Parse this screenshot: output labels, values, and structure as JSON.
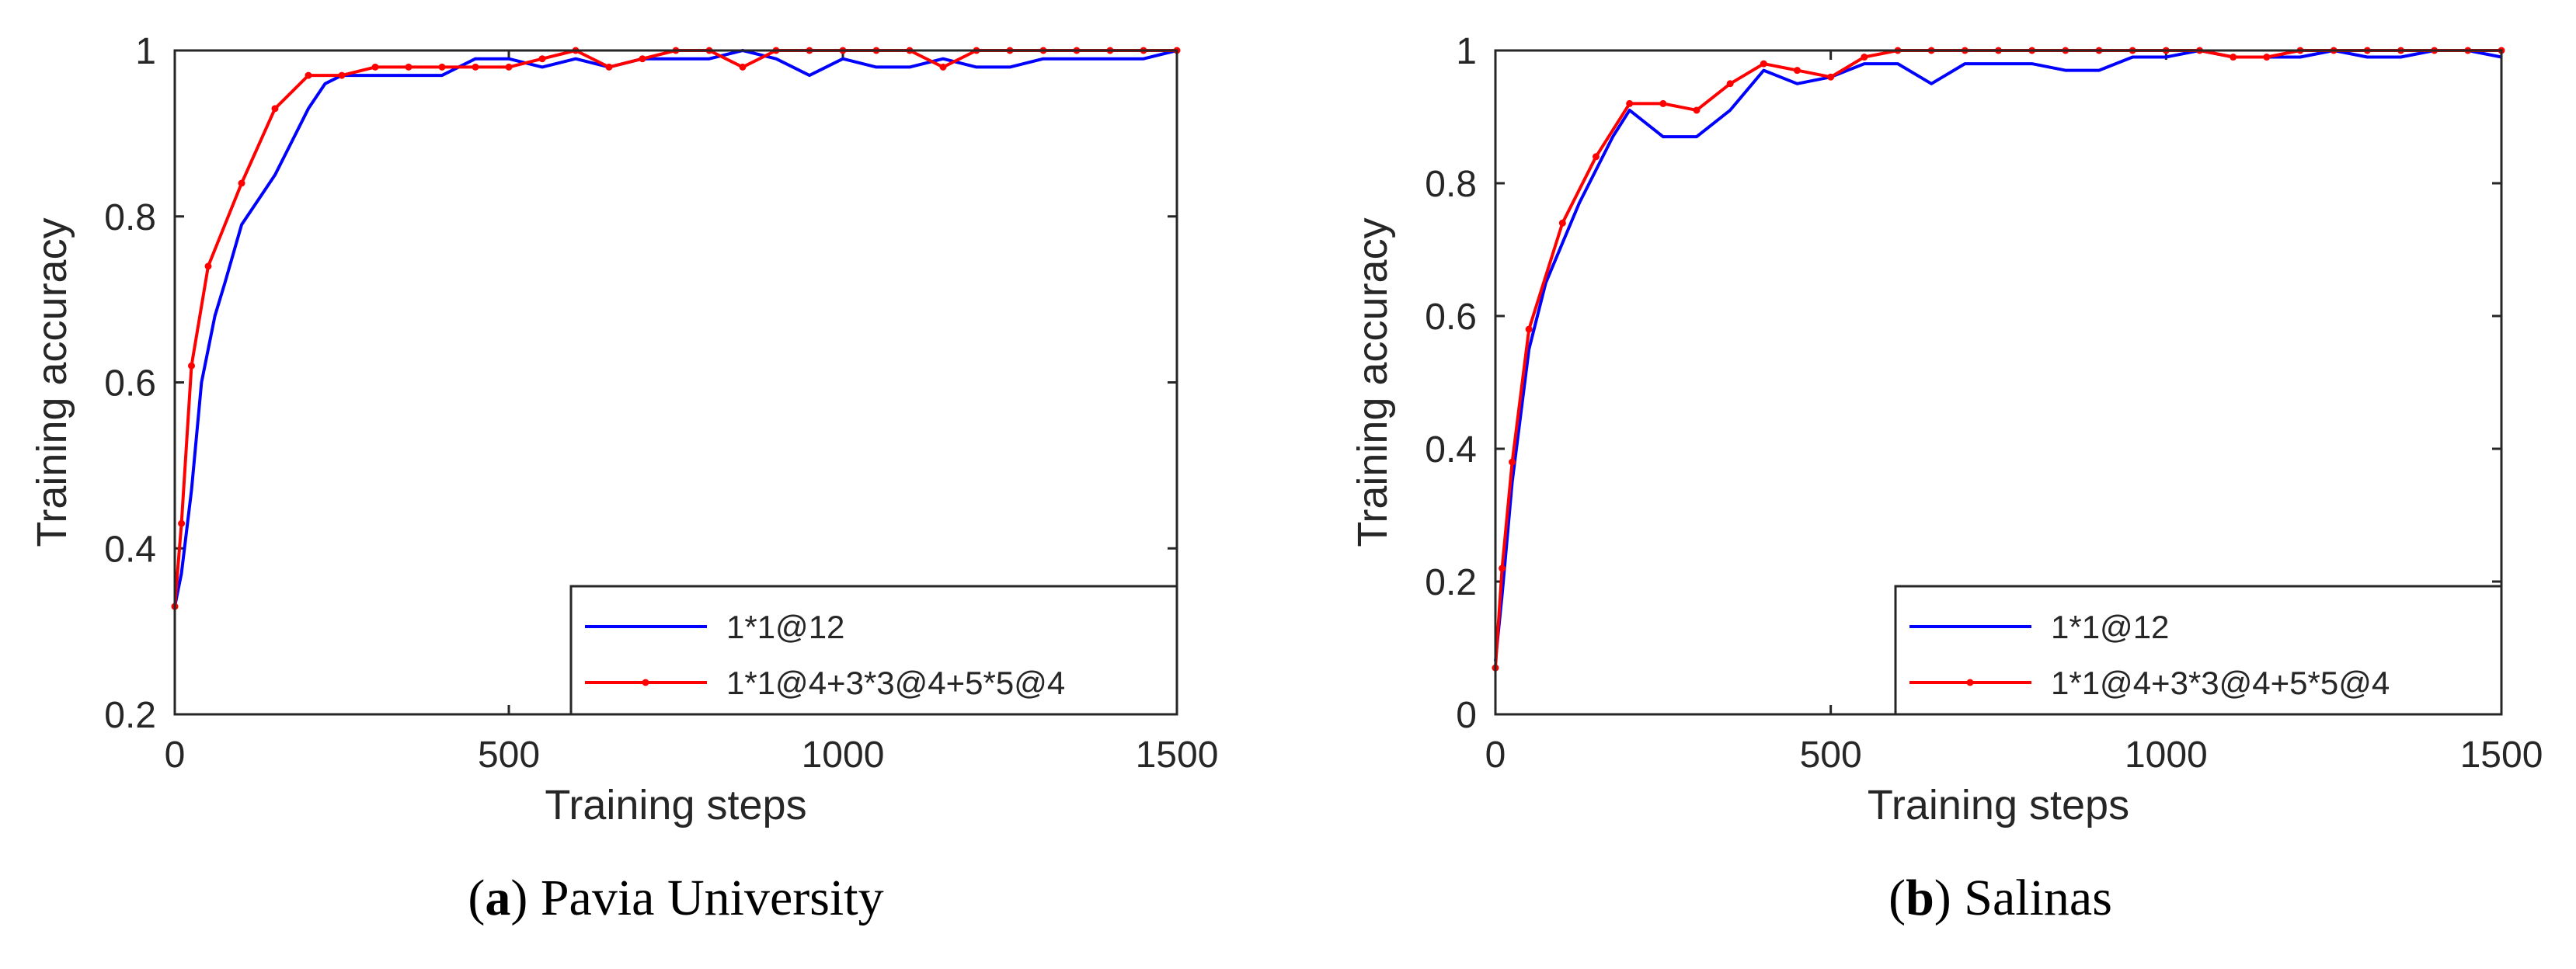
{
  "chart_data": [
    {
      "type": "line",
      "caption_letter": "a",
      "caption_text": ") Pavia University",
      "caption_open": "(",
      "xlabel": "Training steps",
      "ylabel": "Training accuracy",
      "xlim": [
        0,
        1500
      ],
      "ylim": [
        0.2,
        1
      ],
      "xticks": [
        0,
        500,
        1000,
        1500
      ],
      "yticks": [
        0.2,
        0.4,
        0.6,
        0.8,
        1
      ],
      "xtick_labels": [
        "0",
        "500",
        "1000",
        "1500"
      ],
      "ytick_labels": [
        "0.2",
        "0.4",
        "0.6",
        "0.8",
        "1"
      ],
      "legend_position": "bottom-right",
      "series": [
        {
          "name": "1*1@12",
          "color": "#0000ff",
          "marker": "none",
          "x": [
            0,
            10,
            25,
            40,
            50,
            60,
            75,
            100,
            125,
            150,
            175,
            200,
            225,
            250,
            300,
            350,
            400,
            450,
            500,
            550,
            600,
            650,
            700,
            750,
            800,
            850,
            900,
            950,
            1000,
            1050,
            1100,
            1150,
            1200,
            1250,
            1300,
            1350,
            1400,
            1450,
            1500
          ],
          "y": [
            0.33,
            0.37,
            0.47,
            0.6,
            0.64,
            0.68,
            0.72,
            0.79,
            0.82,
            0.85,
            0.89,
            0.93,
            0.96,
            0.97,
            0.97,
            0.97,
            0.97,
            0.99,
            0.99,
            0.98,
            0.99,
            0.98,
            0.99,
            0.99,
            0.99,
            1.0,
            0.99,
            0.97,
            0.99,
            0.98,
            0.98,
            0.99,
            0.98,
            0.98,
            0.99,
            0.99,
            0.99,
            0.99,
            1.0
          ]
        },
        {
          "name": "1*1@4+3*3@4+5*5@4",
          "color": "#ff0000",
          "marker": "dot",
          "x": [
            0,
            10,
            25,
            50,
            100,
            150,
            200,
            250,
            300,
            350,
            400,
            450,
            500,
            550,
            600,
            650,
            700,
            750,
            800,
            850,
            900,
            950,
            1000,
            1050,
            1100,
            1150,
            1200,
            1250,
            1300,
            1350,
            1400,
            1450,
            1500
          ],
          "y": [
            0.33,
            0.43,
            0.62,
            0.74,
            0.84,
            0.93,
            0.97,
            0.97,
            0.98,
            0.98,
            0.98,
            0.98,
            0.98,
            0.99,
            1.0,
            0.98,
            0.99,
            1.0,
            1.0,
            0.98,
            1.0,
            1.0,
            1.0,
            1.0,
            1.0,
            0.98,
            1.0,
            1.0,
            1.0,
            1.0,
            1.0,
            1.0,
            1.0
          ]
        }
      ]
    },
    {
      "type": "line",
      "caption_letter": "b",
      "caption_text": ") Salinas",
      "caption_open": "(",
      "xlabel": "Training steps",
      "ylabel": "Training accuracy",
      "xlim": [
        0,
        1500
      ],
      "ylim": [
        0,
        1
      ],
      "xticks": [
        0,
        500,
        1000,
        1500
      ],
      "yticks": [
        0,
        0.2,
        0.4,
        0.6,
        0.8,
        1
      ],
      "xtick_labels": [
        "0",
        "500",
        "1000",
        "1500"
      ],
      "ytick_labels": [
        "0",
        "0.2",
        "0.4",
        "0.6",
        "0.8",
        "1"
      ],
      "legend_position": "bottom-right",
      "series": [
        {
          "name": "1*1@12",
          "color": "#0000ff",
          "marker": "none",
          "x": [
            0,
            10,
            25,
            50,
            75,
            100,
            125,
            150,
            175,
            200,
            250,
            300,
            350,
            400,
            450,
            500,
            550,
            600,
            650,
            700,
            750,
            800,
            850,
            900,
            950,
            1000,
            1050,
            1100,
            1150,
            1200,
            1250,
            1300,
            1350,
            1400,
            1450,
            1500
          ],
          "y": [
            0.08,
            0.18,
            0.35,
            0.55,
            0.65,
            0.71,
            0.77,
            0.82,
            0.87,
            0.91,
            0.87,
            0.87,
            0.91,
            0.97,
            0.95,
            0.96,
            0.98,
            0.98,
            0.95,
            0.98,
            0.98,
            0.98,
            0.97,
            0.97,
            0.99,
            0.99,
            1.0,
            0.99,
            0.99,
            0.99,
            1.0,
            0.99,
            0.99,
            1.0,
            1.0,
            0.99
          ]
        },
        {
          "name": "1*1@4+3*3@4+5*5@4",
          "color": "#ff0000",
          "marker": "dot",
          "x": [
            0,
            10,
            25,
            50,
            100,
            150,
            200,
            250,
            300,
            350,
            400,
            450,
            500,
            550,
            600,
            650,
            700,
            750,
            800,
            850,
            900,
            950,
            1000,
            1050,
            1100,
            1150,
            1200,
            1250,
            1300,
            1350,
            1400,
            1450,
            1500
          ],
          "y": [
            0.07,
            0.22,
            0.38,
            0.58,
            0.74,
            0.84,
            0.92,
            0.92,
            0.91,
            0.95,
            0.98,
            0.97,
            0.96,
            0.99,
            1.0,
            1.0,
            1.0,
            1.0,
            1.0,
            1.0,
            1.0,
            1.0,
            1.0,
            1.0,
            0.99,
            0.99,
            1.0,
            1.0,
            1.0,
            1.0,
            1.0,
            1.0,
            1.0
          ]
        }
      ]
    }
  ]
}
